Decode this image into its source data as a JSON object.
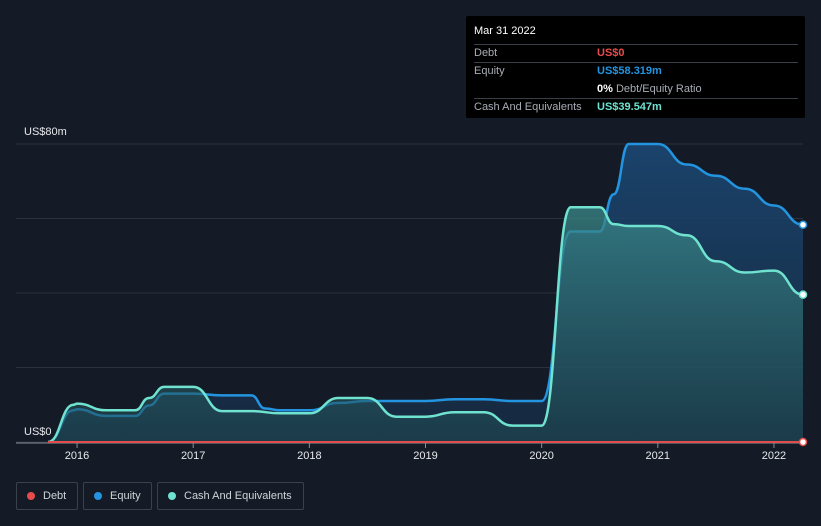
{
  "tooltip": {
    "date": "Mar 31 2022",
    "debt_label": "Debt",
    "debt_value": "US$0",
    "equity_label": "Equity",
    "equity_value": "US$58.319m",
    "ratio_value": "0%",
    "ratio_label": "Debt/Equity Ratio",
    "cash_label": "Cash And Equivalents",
    "cash_value": "US$39.547m"
  },
  "legend": {
    "debt": "Debt",
    "equity": "Equity",
    "cash": "Cash And Equivalents"
  },
  "colors": {
    "background": "#151b26",
    "debt": "#e64c4c",
    "equity": "#2394df",
    "cash": "#6fe3cf"
  },
  "chart_data": {
    "type": "area",
    "y_axis_labels": [
      "US$80m",
      "US$0"
    ],
    "ylim": [
      0,
      80
    ],
    "xlim": [
      2015.75,
      2022.25
    ],
    "x_tick_labels": [
      "2016",
      "2017",
      "2018",
      "2019",
      "2020",
      "2021",
      "2022"
    ],
    "x_ticks": [
      2016,
      2017,
      2018,
      2019,
      2020,
      2021,
      2022
    ],
    "grid": true,
    "legend_position": "bottom-left",
    "series": [
      {
        "name": "Equity",
        "points": [
          [
            2015.75,
            0
          ],
          [
            2015.97,
            8.5
          ],
          [
            2016.0,
            8.8
          ],
          [
            2016.25,
            7.0
          ],
          [
            2016.5,
            7.0
          ],
          [
            2016.62,
            9.8
          ],
          [
            2016.75,
            13.0
          ],
          [
            2017.0,
            13.0
          ],
          [
            2017.25,
            12.5
          ],
          [
            2017.5,
            12.5
          ],
          [
            2017.62,
            9.0
          ],
          [
            2017.75,
            8.5
          ],
          [
            2018.0,
            8.5
          ],
          [
            2018.25,
            10.5
          ],
          [
            2018.5,
            11.0
          ],
          [
            2018.75,
            11.0
          ],
          [
            2019.0,
            11.0
          ],
          [
            2019.25,
            11.5
          ],
          [
            2019.5,
            11.5
          ],
          [
            2019.75,
            11.0
          ],
          [
            2020.0,
            11.0
          ],
          [
            2020.25,
            56.5
          ],
          [
            2020.5,
            56.5
          ],
          [
            2020.62,
            66.5
          ],
          [
            2020.75,
            80.0
          ],
          [
            2021.0,
            80.0
          ],
          [
            2021.25,
            74.5
          ],
          [
            2021.5,
            71.5
          ],
          [
            2021.75,
            68.0
          ],
          [
            2022.0,
            63.5
          ],
          [
            2022.25,
            58.319
          ]
        ]
      },
      {
        "name": "Cash And Equivalents",
        "points": [
          [
            2015.75,
            0
          ],
          [
            2015.97,
            10.0
          ],
          [
            2016.0,
            10.3
          ],
          [
            2016.25,
            8.5
          ],
          [
            2016.5,
            8.5
          ],
          [
            2016.62,
            11.8
          ],
          [
            2016.75,
            14.8
          ],
          [
            2017.0,
            14.8
          ],
          [
            2017.25,
            8.3
          ],
          [
            2017.5,
            8.3
          ],
          [
            2017.75,
            7.7
          ],
          [
            2018.0,
            7.7
          ],
          [
            2018.25,
            11.8
          ],
          [
            2018.5,
            11.8
          ],
          [
            2018.75,
            6.8
          ],
          [
            2019.0,
            6.8
          ],
          [
            2019.25,
            8.0
          ],
          [
            2019.5,
            8.0
          ],
          [
            2019.75,
            4.4
          ],
          [
            2020.0,
            4.4
          ],
          [
            2020.25,
            63.0
          ],
          [
            2020.5,
            63.0
          ],
          [
            2020.62,
            58.5
          ],
          [
            2020.75,
            58.0
          ],
          [
            2021.0,
            58.0
          ],
          [
            2021.25,
            55.5
          ],
          [
            2021.5,
            48.5
          ],
          [
            2021.75,
            45.5
          ],
          [
            2022.0,
            46.0
          ],
          [
            2022.25,
            39.547
          ]
        ]
      },
      {
        "name": "Debt",
        "points": [
          [
            2015.75,
            0
          ],
          [
            2022.25,
            0
          ]
        ]
      }
    ]
  }
}
